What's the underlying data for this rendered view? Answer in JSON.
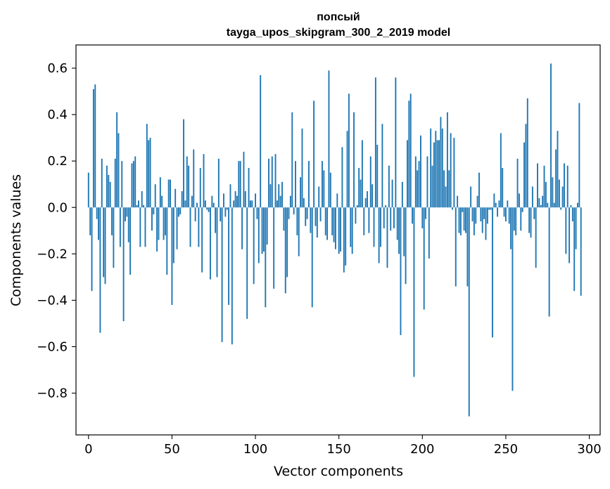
{
  "chart_data": {
    "type": "bar",
    "title": "попсый",
    "subtitle": "tayga_upos_skipgram_300_2_2019 model",
    "xlabel": "Vector components",
    "ylabel": "Components values",
    "xlim": [
      -7.5,
      306.5
    ],
    "ylim": [
      -0.98,
      0.7
    ],
    "xticks": [
      0,
      50,
      100,
      150,
      200,
      250,
      300
    ],
    "xtick_labels": [
      "0",
      "50",
      "100",
      "150",
      "200",
      "250",
      "300"
    ],
    "yticks": [
      -0.8,
      -0.6,
      -0.4,
      -0.2,
      0.0,
      0.2,
      0.4,
      0.6
    ],
    "ytick_labels": [
      "−0.8",
      "−0.6",
      "−0.4",
      "−0.2",
      "0.0",
      "0.2",
      "0.4",
      "0.6"
    ],
    "bar_color": "#1f77b4",
    "grid": false,
    "series": [
      {
        "name": "values",
        "x_start": 0,
        "values": [
          0.15,
          -0.12,
          -0.36,
          0.51,
          0.53,
          -0.05,
          -0.14,
          -0.54,
          0.21,
          -0.3,
          -0.33,
          0.18,
          0.14,
          0.11,
          -0.12,
          -0.26,
          0.21,
          0.41,
          0.32,
          -0.17,
          0.2,
          -0.49,
          -0.06,
          -0.04,
          -0.15,
          -0.29,
          0.19,
          0.2,
          0.22,
          0.01,
          0.03,
          -0.17,
          0.07,
          0.01,
          -0.17,
          0.36,
          0.29,
          0.3,
          -0.1,
          -0.03,
          0.1,
          -0.19,
          -0.14,
          0.13,
          0.05,
          -0.14,
          -0.12,
          -0.29,
          0.12,
          0.12,
          -0.42,
          -0.24,
          0.08,
          -0.18,
          -0.04,
          -0.03,
          0.07,
          0.38,
          0.03,
          0.22,
          0.18,
          -0.17,
          0.05,
          0.25,
          -0.06,
          0.02,
          -0.17,
          0.17,
          -0.28,
          0.23,
          0.03,
          -0.01,
          -0.02,
          -0.31,
          0.05,
          0.02,
          -0.11,
          -0.3,
          0.21,
          -0.06,
          -0.58,
          0.06,
          -0.04,
          -0.01,
          -0.42,
          0.1,
          -0.59,
          0.03,
          0.07,
          0.05,
          0.2,
          0.2,
          -0.18,
          0.24,
          0.07,
          -0.48,
          0.17,
          0.03,
          0.03,
          -0.33,
          0.06,
          -0.05,
          -0.24,
          0.57,
          -0.2,
          -0.19,
          -0.43,
          -0.16,
          0.21,
          0.1,
          0.22,
          -0.35,
          0.23,
          0.03,
          0.1,
          0.05,
          0.11,
          -0.1,
          -0.37,
          -0.3,
          -0.05,
          0.05,
          0.41,
          -0.03,
          0.2,
          -0.12,
          -0.21,
          0.13,
          0.34,
          0.04,
          -0.08,
          -0.05,
          0.2,
          -0.11,
          -0.43,
          0.46,
          -0.08,
          -0.13,
          0.09,
          -0.06,
          0.2,
          0.16,
          -0.12,
          -0.14,
          0.59,
          0.15,
          -0.12,
          -0.15,
          -0.18,
          0.06,
          -0.2,
          -0.19,
          0.26,
          -0.28,
          -0.25,
          0.33,
          0.49,
          -0.17,
          -0.2,
          0.41,
          -0.07,
          0.01,
          0.17,
          0.12,
          0.29,
          -0.12,
          0.04,
          0.07,
          -0.11,
          0.22,
          0.1,
          -0.17,
          0.56,
          0.27,
          -0.24,
          -0.17,
          0.36,
          -0.09,
          0.01,
          -0.26,
          0.18,
          -0.1,
          0.12,
          -0.09,
          0.56,
          -0.14,
          -0.2,
          -0.55,
          0.11,
          -0.21,
          -0.33,
          0.29,
          0.46,
          0.49,
          -0.07,
          -0.73,
          0.22,
          0.16,
          0.2,
          0.31,
          -0.09,
          -0.44,
          -0.05,
          0.22,
          -0.22,
          0.34,
          0.18,
          0.28,
          0.33,
          0.29,
          0.29,
          0.39,
          0.34,
          0.16,
          0.09,
          0.41,
          0.16,
          0.32,
          -0.01,
          0.3,
          -0.34,
          0.05,
          -0.11,
          -0.12,
          -0.02,
          -0.1,
          -0.11,
          -0.34,
          -0.9,
          0.09,
          -0.06,
          -0.12,
          -0.07,
          0.05,
          0.15,
          -0.06,
          -0.11,
          -0.05,
          -0.14,
          -0.07,
          -0.01,
          -0.01,
          -0.56,
          0.06,
          0.02,
          -0.04,
          0.03,
          0.32,
          0.17,
          -0.04,
          -0.06,
          0.03,
          -0.07,
          -0.18,
          -0.79,
          -0.1,
          -0.12,
          0.21,
          0.06,
          -0.1,
          -0.02,
          0.28,
          0.36,
          0.47,
          -0.11,
          -0.13,
          0.09,
          -0.05,
          -0.26,
          0.19,
          0.04,
          0.01,
          0.05,
          0.18,
          0.11,
          0.02,
          -0.47,
          0.62,
          0.13,
          0.02,
          0.25,
          0.33,
          0.12,
          -0.01,
          0.09,
          0.19,
          -0.2,
          0.18,
          -0.24,
          0.01,
          -0.06,
          -0.36,
          -0.18,
          0.02,
          0.45,
          -0.38
        ]
      }
    ]
  }
}
